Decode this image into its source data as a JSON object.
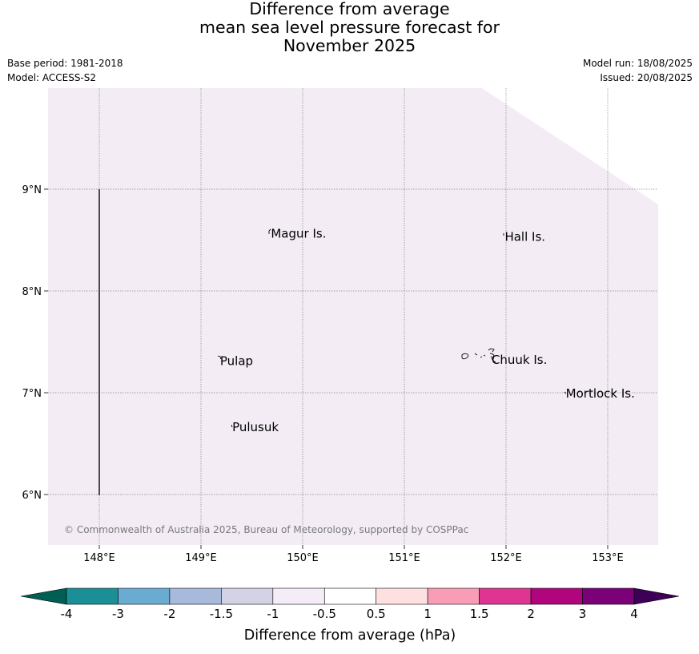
{
  "title": {
    "line1": "Difference from average",
    "line2": "mean sea level pressure forecast for",
    "line3": "November 2025"
  },
  "meta": {
    "base_period": "Base period: 1981-2018",
    "model": "Model: ACCESS-S2",
    "model_run": "Model run: 18/08/2025",
    "issued": "Issued: 20/08/2025"
  },
  "map": {
    "fill_color": "#f3ecf5",
    "lon_ticks": [
      {
        "value": 148,
        "label": "148°E"
      },
      {
        "value": 149,
        "label": "149°E"
      },
      {
        "value": 150,
        "label": "150°E"
      },
      {
        "value": 151,
        "label": "151°E"
      },
      {
        "value": 152,
        "label": "152°E"
      },
      {
        "value": 153,
        "label": "153°E"
      }
    ],
    "lat_ticks": [
      {
        "value": 9,
        "label": "9°N"
      },
      {
        "value": 8,
        "label": "8°N"
      },
      {
        "value": 7,
        "label": "7°N"
      },
      {
        "value": 6,
        "label": "6°N"
      }
    ],
    "places": [
      {
        "name": "Magur Is.",
        "lon": 149.68,
        "lat": 8.57
      },
      {
        "name": "Hall Is.",
        "lon": 151.98,
        "lat": 8.54
      },
      {
        "name": "Pulap",
        "lon": 149.18,
        "lat": 7.32
      },
      {
        "name": "Chuuk Is.",
        "lon": 151.85,
        "lat": 7.33
      },
      {
        "name": "Mortlock Is.",
        "lon": 152.58,
        "lat": 7.0
      },
      {
        "name": "Pulusuk",
        "lon": 149.3,
        "lat": 6.67
      }
    ],
    "copyright": "© Commonwealth of Australia 2025, Bureau of Meteorology, supported by COSPPac"
  },
  "colorbar": {
    "label": "Difference from average (hPa)",
    "under_color": "#005f55",
    "over_color": "#3d0056",
    "colors": [
      "#1a8f95",
      "#6aabd2",
      "#a8badb",
      "#d4d3e6",
      "#f4ecf6",
      "#ffffff",
      "#fde0df",
      "#f99db7",
      "#df3592",
      "#b0057c",
      "#7a0177"
    ],
    "tick_labels": [
      "-4",
      "-3",
      "-2",
      "-1.5",
      "-1",
      "-0.5",
      "0.5",
      "1",
      "1.5",
      "2",
      "3",
      "4"
    ]
  }
}
